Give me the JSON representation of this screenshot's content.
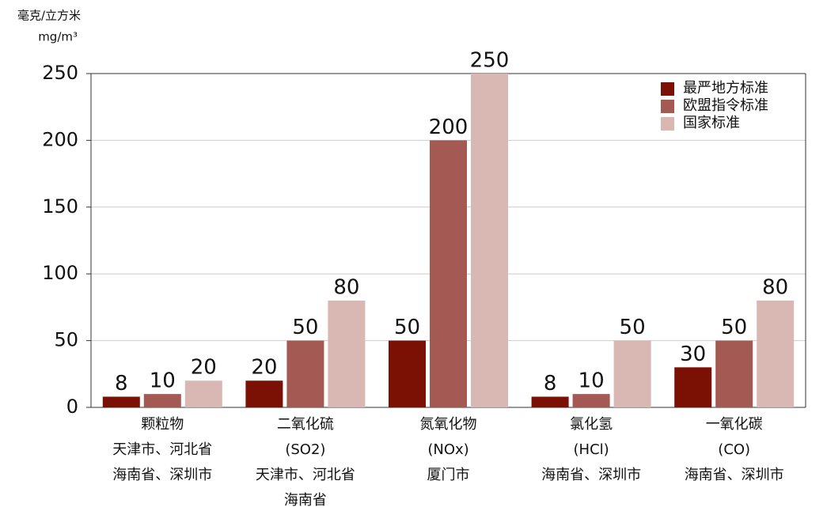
{
  "chart_data": {
    "type": "bar",
    "y_label": [
      "毫克/立方米",
      "mg/m³"
    ],
    "categories": [
      [
        "颗粒物",
        "天津市、河北省",
        "海南省、深圳市"
      ],
      [
        "二氧化硫",
        "(SO2)",
        "天津市、河北省",
        "海南省"
      ],
      [
        "氮氧化物",
        "(NOx)",
        "厦门市"
      ],
      [
        "氯化氢",
        "(HCl)",
        "海南省、深圳市"
      ],
      [
        "一氧化碳",
        "(CO)",
        "海南省、深圳市"
      ]
    ],
    "series": [
      {
        "name": "最严地方标准",
        "color": "#7b1104",
        "values": [
          8,
          20,
          50,
          8,
          30
        ]
      },
      {
        "name": "欧盟指令标准",
        "color": "#a45a52",
        "values": [
          10,
          50,
          200,
          10,
          50
        ]
      },
      {
        "name": "国家标准",
        "color": "#d9b8b4",
        "values": [
          20,
          80,
          250,
          50,
          80
        ]
      }
    ],
    "ylim": [
      0,
      250
    ],
    "yticks": [
      0,
      50,
      100,
      150,
      200,
      250
    ],
    "grid": true,
    "legend": "top-right"
  }
}
